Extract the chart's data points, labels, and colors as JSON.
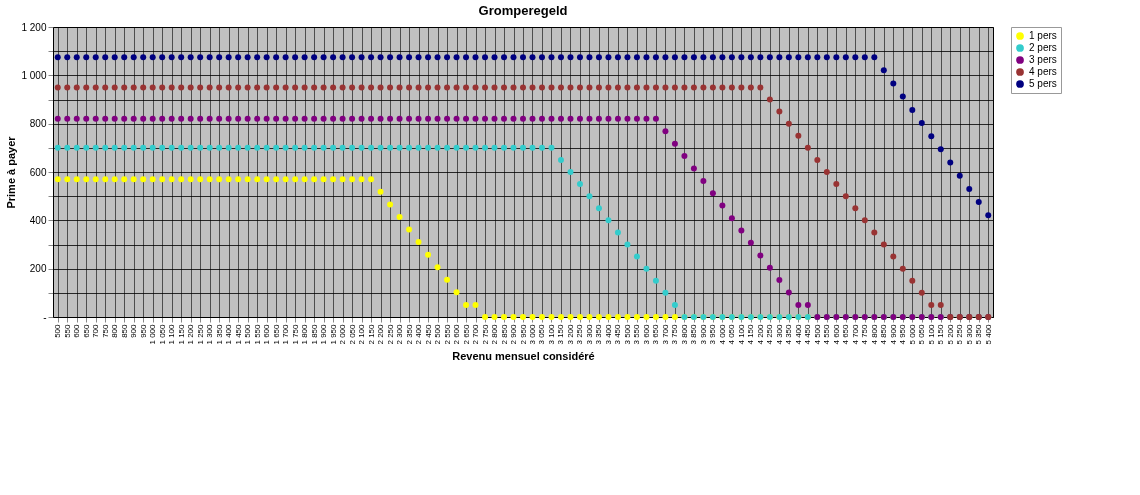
{
  "chart_data": {
    "type": "scatter",
    "title": "Gromperegeld",
    "xlabel": "Revenu mensuel considéré",
    "ylabel": "Prime à payer",
    "categories": [
      "500",
      "550",
      "600",
      "650",
      "700",
      "750",
      "800",
      "850",
      "900",
      "950",
      "1 000",
      "1 050",
      "1 100",
      "1 150",
      "1 200",
      "1 250",
      "1 300",
      "1 350",
      "1 400",
      "1 450",
      "1 500",
      "1 550",
      "1 600",
      "1 650",
      "1 700",
      "1 750",
      "1 800",
      "1 850",
      "1 900",
      "1 950",
      "2 000",
      "2 050",
      "2 100",
      "2 150",
      "2 200",
      "2 250",
      "2 300",
      "2 350",
      "2 400",
      "2 450",
      "2 500",
      "2 550",
      "2 600",
      "2 650",
      "2 700",
      "2 750",
      "2 800",
      "2 850",
      "2 900",
      "2 950",
      "3 000",
      "3 050",
      "3 100",
      "3 150",
      "3 200",
      "3 250",
      "3 300",
      "3 350",
      "3 400",
      "3 450",
      "3 500",
      "3 550",
      "3 600",
      "3 650",
      "3 700",
      "3 750",
      "3 800",
      "3 850",
      "3 900",
      "3 950",
      "4 000",
      "4 050",
      "4 100",
      "4 150",
      "4 200",
      "4 250",
      "4 300",
      "4 350",
      "4 400",
      "4 450",
      "4 500",
      "4 550",
      "4 600",
      "4 650",
      "4 700",
      "4 750",
      "4 800",
      "4 850",
      "4 900",
      "4 950",
      "5 000",
      "5 050",
      "5 100",
      "5 150",
      "5 200",
      "5 250",
      "5 300",
      "5 350",
      "5 400"
    ],
    "series": [
      {
        "name": "1 pers",
        "color": "#ffff00",
        "values": [
          570,
          570,
          570,
          570,
          570,
          570,
          570,
          570,
          570,
          570,
          570,
          570,
          570,
          570,
          570,
          570,
          570,
          570,
          570,
          570,
          570,
          570,
          570,
          570,
          570,
          570,
          570,
          570,
          570,
          570,
          570,
          570,
          570,
          570,
          518,
          466,
          414,
          362,
          310,
          258,
          206,
          154,
          102,
          50,
          50,
          0,
          0,
          0,
          0,
          0,
          0,
          0,
          0,
          0,
          0,
          0,
          0,
          0,
          0,
          0,
          0,
          0,
          0,
          0,
          0,
          0,
          0,
          0,
          0,
          0,
          0,
          0,
          0,
          0,
          0,
          0,
          0,
          0,
          0,
          0,
          0,
          0,
          0,
          0,
          0,
          0,
          0,
          0,
          0,
          0,
          0,
          0,
          0,
          0,
          0,
          0,
          0,
          0,
          0
        ]
      },
      {
        "name": "2 pers",
        "color": "#33cccc",
        "values": [
          700,
          700,
          700,
          700,
          700,
          700,
          700,
          700,
          700,
          700,
          700,
          700,
          700,
          700,
          700,
          700,
          700,
          700,
          700,
          700,
          700,
          700,
          700,
          700,
          700,
          700,
          700,
          700,
          700,
          700,
          700,
          700,
          700,
          700,
          700,
          700,
          700,
          700,
          700,
          700,
          700,
          700,
          700,
          700,
          700,
          700,
          700,
          700,
          700,
          700,
          700,
          700,
          700,
          650,
          600,
          550,
          500,
          450,
          400,
          350,
          300,
          250,
          200,
          150,
          100,
          50,
          0,
          0,
          0,
          0,
          0,
          0,
          0,
          0,
          0,
          0,
          0,
          0,
          0,
          0,
          0,
          0,
          0,
          0,
          0,
          0,
          0,
          0,
          0,
          0,
          0,
          0,
          0,
          0,
          0,
          0,
          0,
          0,
          0
        ]
      },
      {
        "name": "3 pers",
        "color": "#800080",
        "values": [
          820,
          820,
          820,
          820,
          820,
          820,
          820,
          820,
          820,
          820,
          820,
          820,
          820,
          820,
          820,
          820,
          820,
          820,
          820,
          820,
          820,
          820,
          820,
          820,
          820,
          820,
          820,
          820,
          820,
          820,
          820,
          820,
          820,
          820,
          820,
          820,
          820,
          820,
          820,
          820,
          820,
          820,
          820,
          820,
          820,
          820,
          820,
          820,
          820,
          820,
          820,
          820,
          820,
          820,
          820,
          820,
          820,
          820,
          820,
          820,
          820,
          820,
          820,
          820,
          769,
          717,
          666,
          615,
          563,
          512,
          461,
          409,
          358,
          307,
          255,
          204,
          153,
          101,
          50,
          50,
          0,
          0,
          0,
          0,
          0,
          0,
          0,
          0,
          0,
          0,
          0,
          0,
          0,
          0,
          0,
          0,
          0,
          0,
          0
        ]
      },
      {
        "name": "4 pers",
        "color": "#993333",
        "values": [
          950,
          950,
          950,
          950,
          950,
          950,
          950,
          950,
          950,
          950,
          950,
          950,
          950,
          950,
          950,
          950,
          950,
          950,
          950,
          950,
          950,
          950,
          950,
          950,
          950,
          950,
          950,
          950,
          950,
          950,
          950,
          950,
          950,
          950,
          950,
          950,
          950,
          950,
          950,
          950,
          950,
          950,
          950,
          950,
          950,
          950,
          950,
          950,
          950,
          950,
          950,
          950,
          950,
          950,
          950,
          950,
          950,
          950,
          950,
          950,
          950,
          950,
          950,
          950,
          950,
          950,
          950,
          950,
          950,
          950,
          950,
          950,
          950,
          950,
          950,
          900,
          850,
          800,
          750,
          700,
          650,
          600,
          550,
          500,
          450,
          400,
          350,
          300,
          250,
          200,
          150,
          100,
          50,
          50,
          0,
          0,
          0,
          0,
          0
        ]
      },
      {
        "name": "5 pers",
        "color": "#000080",
        "values": [
          1075,
          1075,
          1075,
          1075,
          1075,
          1075,
          1075,
          1075,
          1075,
          1075,
          1075,
          1075,
          1075,
          1075,
          1075,
          1075,
          1075,
          1075,
          1075,
          1075,
          1075,
          1075,
          1075,
          1075,
          1075,
          1075,
          1075,
          1075,
          1075,
          1075,
          1075,
          1075,
          1075,
          1075,
          1075,
          1075,
          1075,
          1075,
          1075,
          1075,
          1075,
          1075,
          1075,
          1075,
          1075,
          1075,
          1075,
          1075,
          1075,
          1075,
          1075,
          1075,
          1075,
          1075,
          1075,
          1075,
          1075,
          1075,
          1075,
          1075,
          1075,
          1075,
          1075,
          1075,
          1075,
          1075,
          1075,
          1075,
          1075,
          1075,
          1075,
          1075,
          1075,
          1075,
          1075,
          1075,
          1075,
          1075,
          1075,
          1075,
          1075,
          1075,
          1075,
          1075,
          1075,
          1075,
          1075,
          1021,
          966,
          912,
          857,
          803,
          748,
          694,
          639,
          585,
          530,
          476,
          421
        ]
      }
    ],
    "ylim": [
      0,
      1200
    ],
    "yticks": [
      {
        "value": 0,
        "label": "-"
      },
      {
        "value": 100,
        "label": null
      },
      200,
      {
        "value": 300,
        "label": null
      },
      400,
      {
        "value": 500,
        "label": null
      },
      600,
      {
        "value": 700,
        "label": null
      },
      800,
      {
        "value": 900,
        "label": null
      },
      {
        "value": 1000,
        "label": "1 000"
      },
      {
        "value": 1100,
        "label": null
      },
      {
        "value": 1200,
        "label": "1 200"
      }
    ],
    "grid": true,
    "legend": "right",
    "marker": "circle"
  }
}
